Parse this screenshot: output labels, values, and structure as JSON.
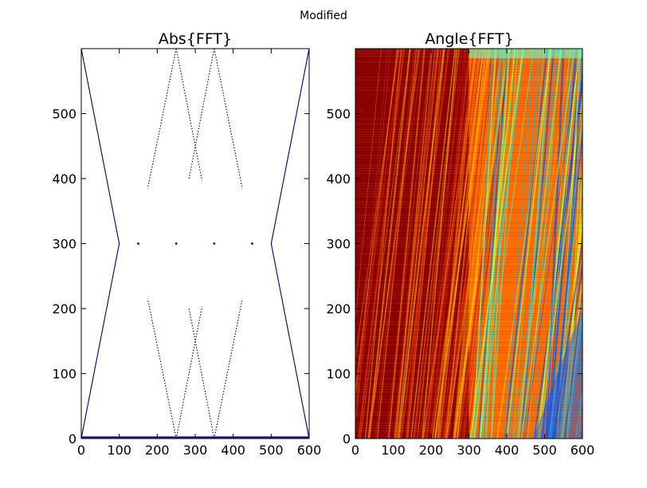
{
  "suptitle": "Modified",
  "chart_data": [
    {
      "type": "scatter",
      "title": "Abs{FFT}",
      "xlabel": "",
      "ylabel": "",
      "xlim": [
        0,
        600
      ],
      "ylim": [
        0,
        600
      ],
      "xticks": [
        "0",
        "100",
        "200",
        "300",
        "400",
        "500",
        "600"
      ],
      "yticks": [
        "0",
        "100",
        "200",
        "300",
        "400",
        "500"
      ],
      "grid": false,
      "series": [
        {
          "points": [
            [
              0,
              600
            ],
            [
              100,
              300
            ],
            [
              0,
              0
            ]
          ],
          "color": "#00007f"
        },
        {
          "points": [
            [
              600,
              600
            ],
            [
              500,
              300
            ],
            [
              600,
              0
            ]
          ],
          "color": "#00007f"
        },
        {
          "points": [
            [
              250,
              600
            ],
            [
              175,
              385
            ]
          ],
          "color": "#00007f"
        },
        {
          "points": [
            [
              250,
              600
            ],
            [
              318,
              397
            ]
          ],
          "color": "#00007f"
        },
        {
          "points": [
            [
              350,
              600
            ],
            [
              283,
              398
            ]
          ],
          "color": "#00007f"
        },
        {
          "points": [
            [
              350,
              600
            ],
            [
              424,
              385
            ]
          ],
          "color": "#00007f"
        },
        {
          "points": [
            [
              250,
              0
            ],
            [
              175,
              215
            ]
          ],
          "color": "#00007f"
        },
        {
          "points": [
            [
              250,
              0
            ],
            [
              318,
              203
            ]
          ],
          "color": "#00007f"
        },
        {
          "points": [
            [
              350,
              0
            ],
            [
              283,
              202
            ]
          ],
          "color": "#00007f"
        },
        {
          "points": [
            [
              350,
              0
            ],
            [
              424,
              215
            ]
          ],
          "color": "#00007f"
        },
        {
          "points": [
            [
              0,
              2
            ],
            [
              600,
              2
            ]
          ],
          "color": "#00007f"
        }
      ],
      "markers": [
        [
          150,
          300
        ],
        [
          250,
          300
        ],
        [
          350,
          300
        ],
        [
          450,
          300
        ]
      ]
    },
    {
      "type": "heatmap",
      "title": "Angle{FFT}",
      "xlabel": "",
      "ylabel": "",
      "xlim": [
        0,
        600
      ],
      "ylim": [
        0,
        600
      ],
      "xticks": [
        "0",
        "100",
        "200",
        "300",
        "400",
        "500",
        "600"
      ],
      "yticks": [
        "0",
        "100",
        "200",
        "300",
        "400",
        "500"
      ],
      "grid": false,
      "colormap": "jet",
      "regions": [
        {
          "x": [
            0,
            300
          ],
          "dominant": "#8b0000"
        },
        {
          "x": [
            300,
            600
          ],
          "dominant": "#ff6a00"
        }
      ],
      "streak_colors": [
        "#00bfff",
        "#33ffcc",
        "#0044ff",
        "#ccff33"
      ]
    }
  ]
}
